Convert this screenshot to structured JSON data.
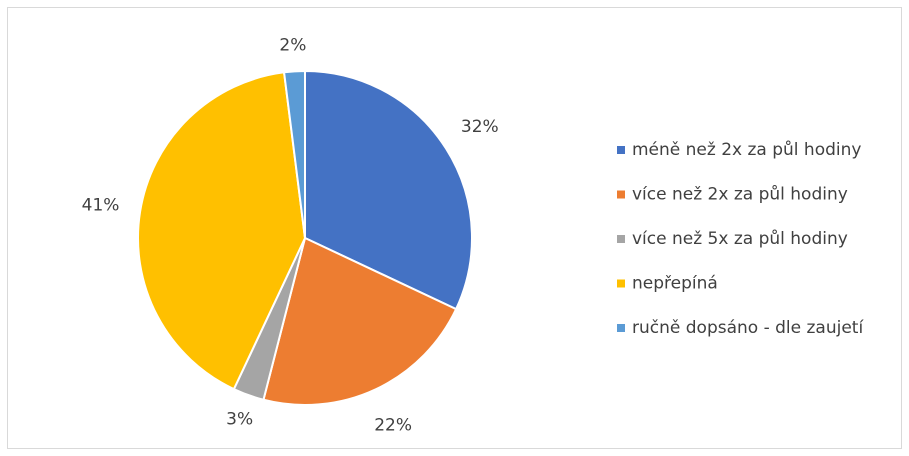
{
  "chart_data": {
    "type": "pie",
    "categories": [
      "méně než 2x za půl hodiny",
      "více než 2x za půl hodiny",
      "více než 5x za půl hodiny",
      "nepřepíná",
      "ručně dopsáno - dle zaujetí"
    ],
    "values": [
      32,
      22,
      3,
      41,
      2
    ],
    "value_labels": [
      "32%",
      "22%",
      "3%",
      "41%",
      "2%"
    ],
    "colors": [
      "#4472c4",
      "#ed7d31",
      "#a5a5a5",
      "#ffc000",
      "#5b9bd5"
    ],
    "legend": "right"
  }
}
